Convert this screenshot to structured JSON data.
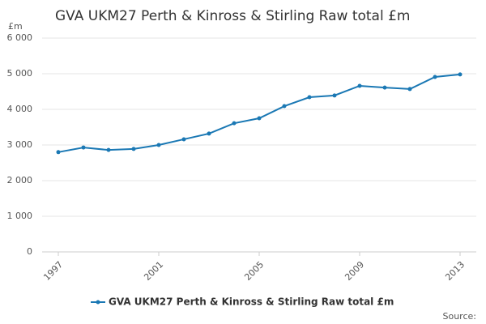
{
  "chart_data": {
    "type": "line",
    "title": "GVA UKM27 Perth & Kinross & Stirling Raw total £m",
    "y_label": "£m",
    "source": "Source:",
    "x": [
      1997,
      1998,
      1999,
      2000,
      2001,
      2002,
      2003,
      2004,
      2005,
      2006,
      2007,
      2008,
      2009,
      2010,
      2011,
      2012,
      2013
    ],
    "series": [
      {
        "name": "GVA UKM27 Perth & Kinross & Stirling Raw total £m",
        "color": "#1a78b4",
        "values": [
          2800,
          2930,
          2860,
          2890,
          3000,
          3160,
          3320,
          3610,
          3750,
          4090,
          4340,
          4390,
          4660,
          4610,
          4570,
          4910,
          4980
        ]
      }
    ],
    "xlim": [
      1997,
      2013
    ],
    "xticks": [
      1997,
      2001,
      2005,
      2009,
      2013
    ],
    "ylim": [
      0,
      6000
    ],
    "yticks": [
      0,
      {
        "value": 1000,
        "label": "1 000"
      },
      {
        "value": 2000,
        "label": "2 000"
      },
      {
        "value": 3000,
        "label": "3 000"
      },
      {
        "value": 4000,
        "label": "4 000"
      },
      {
        "value": 5000,
        "label": "5 000"
      },
      {
        "value": 6000,
        "label": "6 000"
      }
    ],
    "grid": true
  }
}
